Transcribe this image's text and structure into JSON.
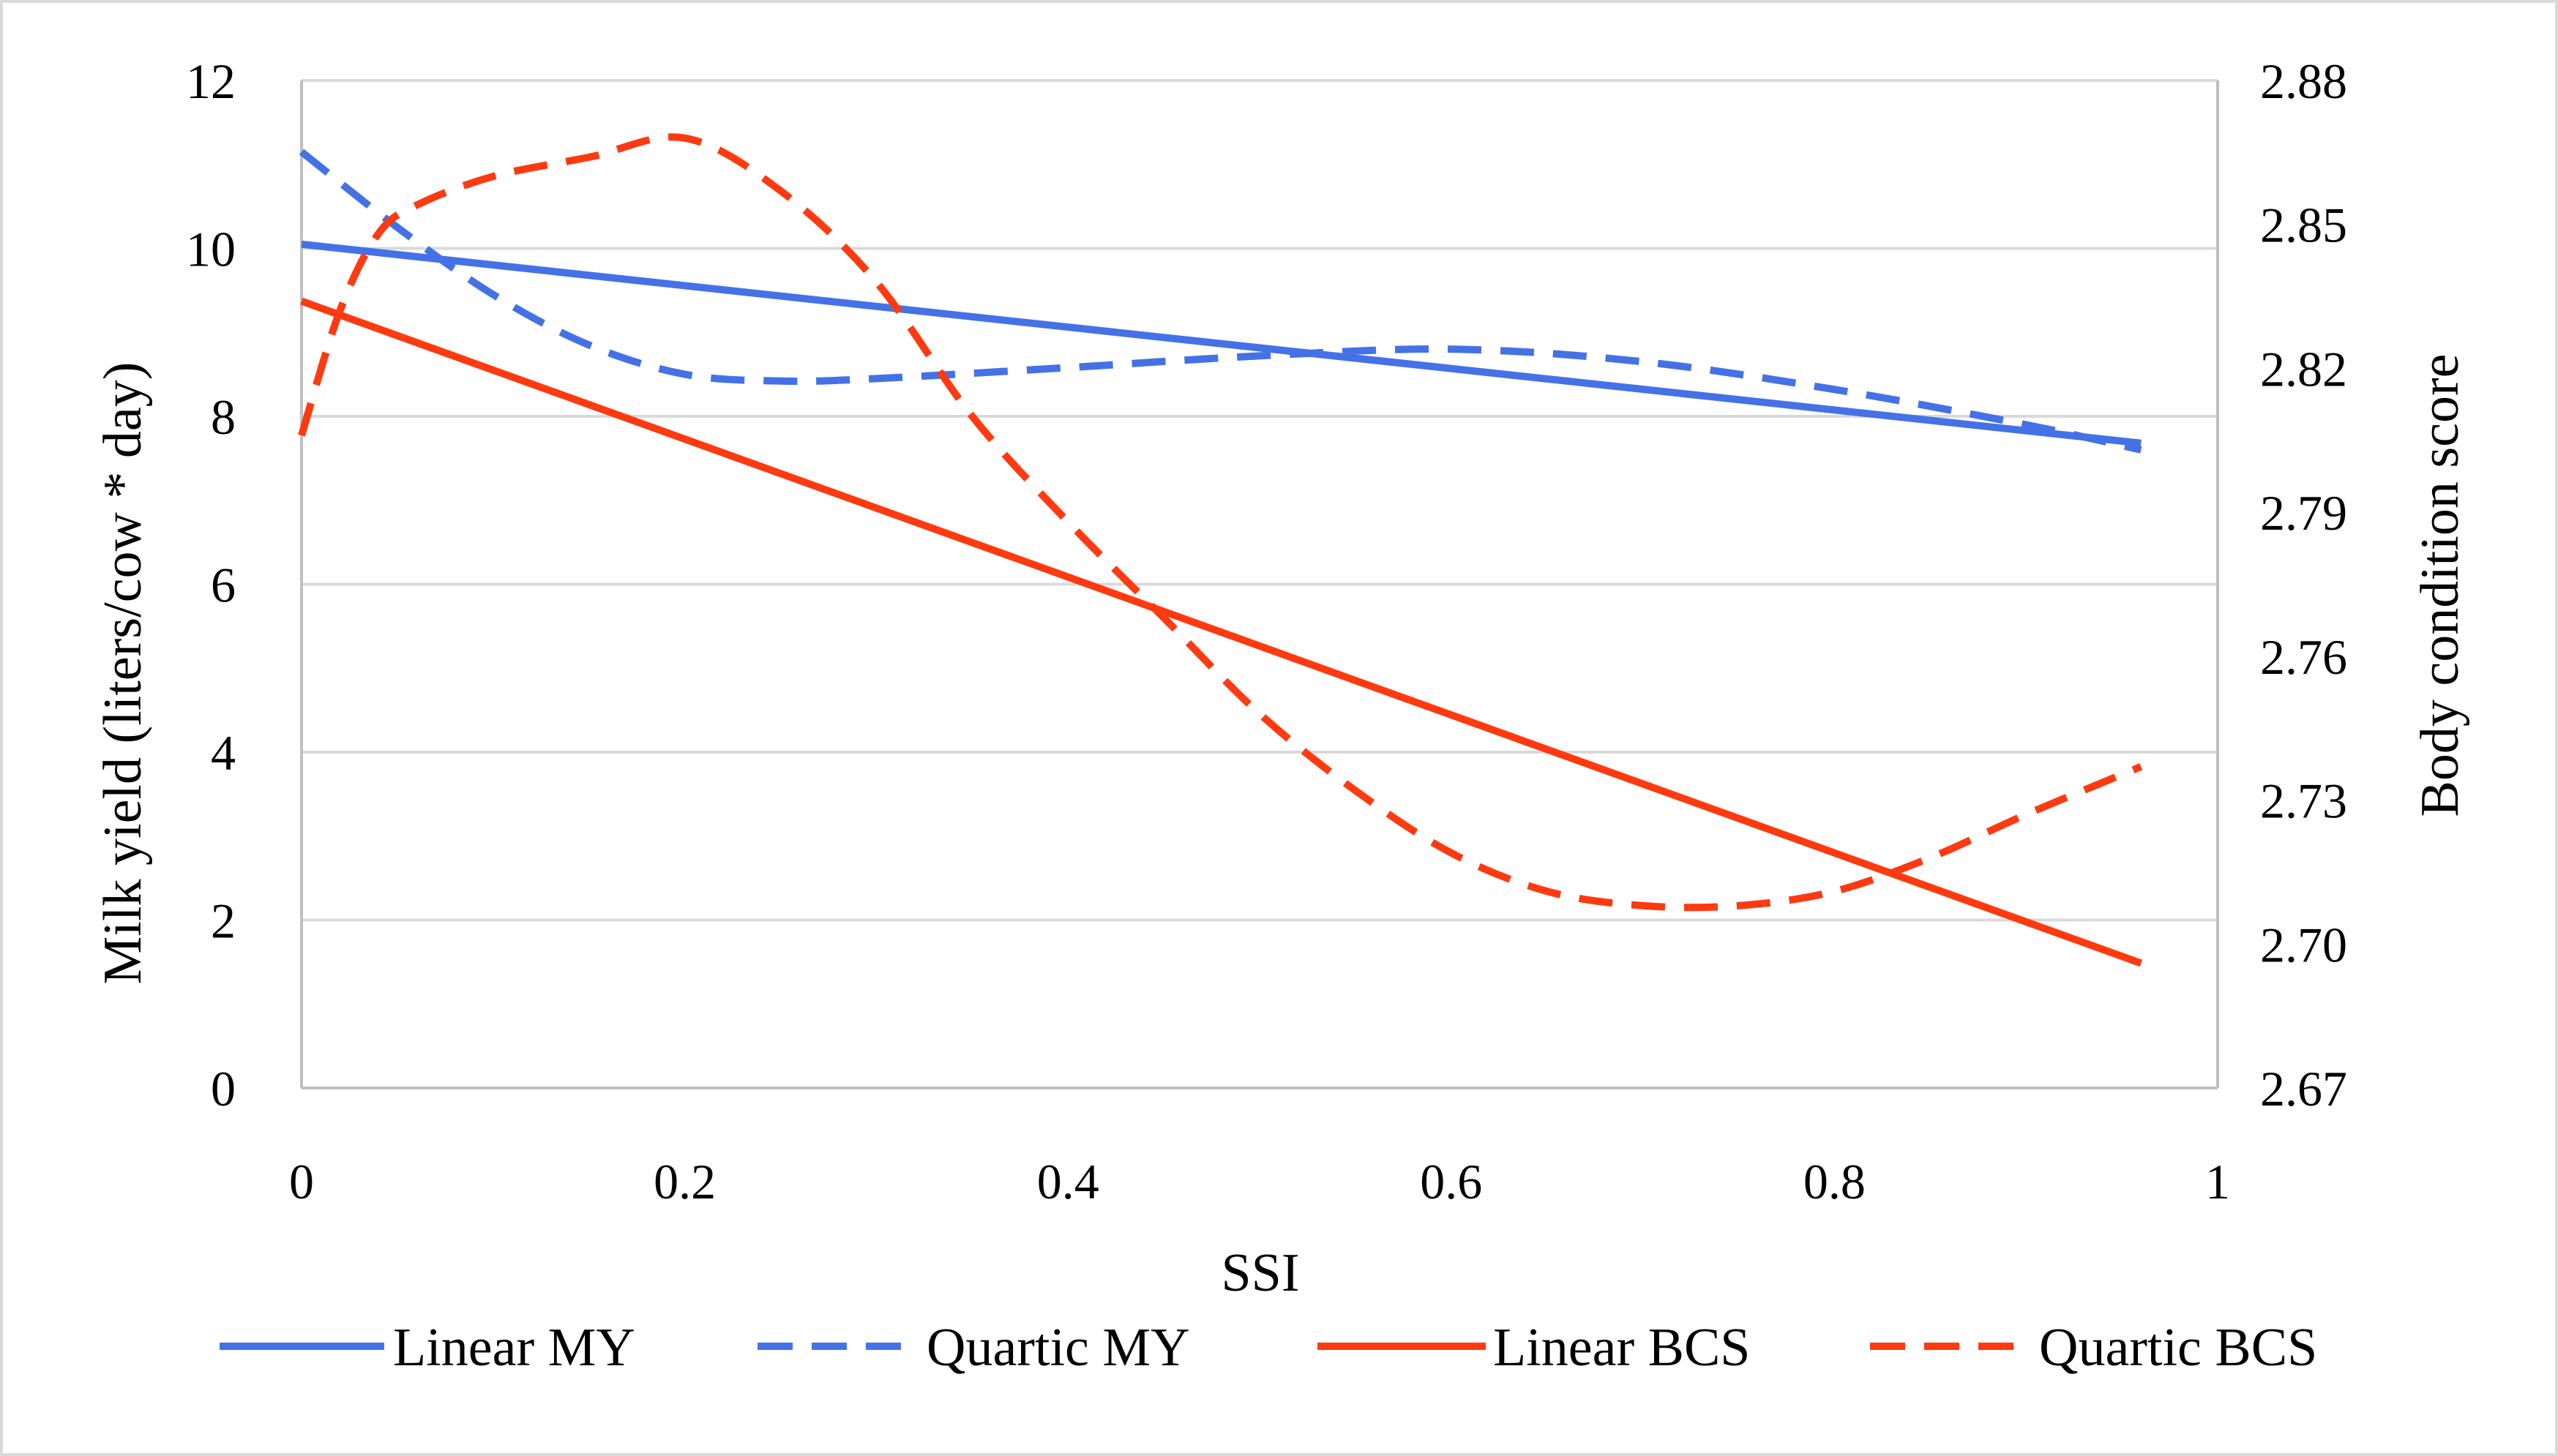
{
  "chart_data": {
    "type": "line",
    "title": "",
    "xlabel": "SSI",
    "ylabel": "Milk yield (liters/cow * day)",
    "y2label": "Body condition score",
    "xlim": [
      0,
      1
    ],
    "ylim": [
      0,
      12
    ],
    "y2lim": [
      2.67,
      2.88
    ],
    "x_ticks": [
      "0",
      "0.2",
      "0.4",
      "0.6",
      "0.8",
      "1"
    ],
    "x_tick_values": [
      0,
      0.2,
      0.4,
      0.6,
      0.8,
      1
    ],
    "y_ticks": [
      "0",
      "2",
      "4",
      "6",
      "8",
      "10",
      "12"
    ],
    "y_tick_values": [
      0,
      2,
      4,
      6,
      8,
      10,
      12
    ],
    "y2_ticks": [
      "2.67",
      "2.70",
      "2.73",
      "2.76",
      "2.79",
      "2.82",
      "2.85",
      "2.88"
    ],
    "y2_tick_values": [
      2.67,
      2.7,
      2.73,
      2.76,
      2.79,
      2.82,
      2.85,
      2.88
    ],
    "grid": true,
    "legend_position": "bottom",
    "series": [
      {
        "name": "Linear MY",
        "axis": "left",
        "style": "solid",
        "color": "#4472e6",
        "x": [
          0,
          0.96
        ],
        "y": [
          10.05,
          7.68
        ]
      },
      {
        "name": "Quartic MY",
        "axis": "left",
        "style": "dashed",
        "color": "#4472e6",
        "x": [
          0,
          0.05,
          0.1,
          0.15,
          0.2,
          0.25,
          0.3,
          0.4,
          0.5,
          0.6,
          0.7,
          0.8,
          0.9,
          0.96
        ],
        "y": [
          11.15,
          10.25,
          9.45,
          8.85,
          8.5,
          8.42,
          8.45,
          8.58,
          8.72,
          8.8,
          8.65,
          8.32,
          7.9,
          7.6
        ]
      },
      {
        "name": "Linear BCS",
        "axis": "right",
        "style": "solid",
        "color": "#ff3a10",
        "x": [
          0,
          0.96
        ],
        "y": [
          2.834,
          2.696
        ]
      },
      {
        "name": "Quartic BCS",
        "axis": "right",
        "style": "dashed",
        "color": "#ff3a10",
        "x": [
          0,
          0.02,
          0.04,
          0.06,
          0.1,
          0.15,
          0.2,
          0.25,
          0.3,
          0.35,
          0.4,
          0.45,
          0.5,
          0.55,
          0.6,
          0.65,
          0.7,
          0.75,
          0.8,
          0.85,
          0.9,
          0.96
        ],
        "y": [
          2.806,
          2.832,
          2.848,
          2.854,
          2.86,
          2.864,
          2.868,
          2.857,
          2.838,
          2.81,
          2.788,
          2.768,
          2.748,
          2.732,
          2.719,
          2.711,
          2.708,
          2.708,
          2.711,
          2.718,
          2.727,
          2.737
        ]
      }
    ]
  }
}
